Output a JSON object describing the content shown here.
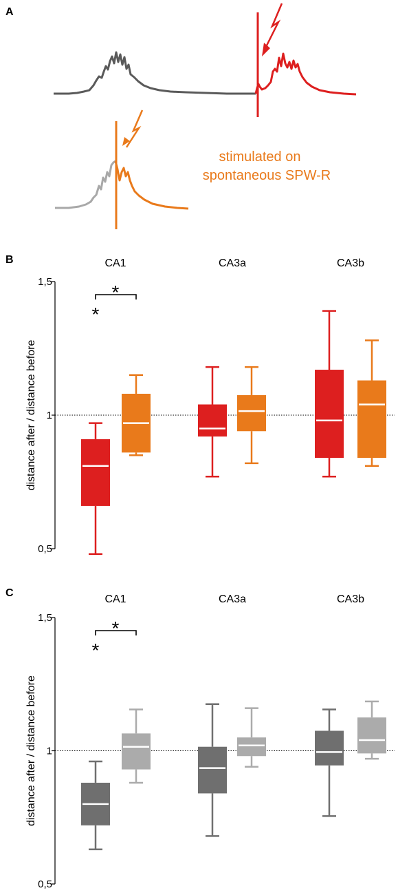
{
  "panel_labels": {
    "a": "A",
    "b": "B",
    "c": "C"
  },
  "panel_a": {
    "annotation": [
      "stimulated on",
      "spontaneous SPW-R"
    ],
    "colors": {
      "spontaneous": "#5a5a5a",
      "stimulated": "#dd1f1f",
      "on_spw_pre": "#a8a8a8",
      "on_spw_post": "#e97a1b"
    }
  },
  "chart_data": [
    {
      "type": "box",
      "panel": "B",
      "ylabel": "distance after / distance before",
      "ylim": [
        0.5,
        1.5
      ],
      "yticks": [
        0.5,
        1,
        1.5
      ],
      "ytick_labels": [
        "0,5",
        "1",
        "1,5"
      ],
      "reference_line": 1.0,
      "groups": [
        "CA1",
        "CA3a",
        "CA3b"
      ],
      "box_colors": [
        "#dd1f1f",
        "#e97a1b"
      ],
      "median_color": "#ffffff",
      "boxes": [
        {
          "group": "CA1",
          "color": "#dd1f1f",
          "whisker_low": 0.48,
          "q1": 0.66,
          "median": 0.81,
          "q3": 0.91,
          "whisker_high": 0.97
        },
        {
          "group": "CA1",
          "color": "#e97a1b",
          "whisker_low": 0.85,
          "q1": 0.86,
          "median": 0.97,
          "q3": 1.08,
          "whisker_high": 1.15
        },
        {
          "group": "CA3a",
          "color": "#dd1f1f",
          "whisker_low": 0.77,
          "q1": 0.92,
          "median": 0.95,
          "q3": 1.04,
          "whisker_high": 1.18
        },
        {
          "group": "CA3a",
          "color": "#e97a1b",
          "whisker_low": 0.82,
          "q1": 0.94,
          "median": 1.015,
          "q3": 1.075,
          "whisker_high": 1.18
        },
        {
          "group": "CA3b",
          "color": "#dd1f1f",
          "whisker_low": 0.77,
          "q1": 0.84,
          "median": 0.98,
          "q3": 1.17,
          "whisker_high": 1.39
        },
        {
          "group": "CA3b",
          "color": "#e97a1b",
          "whisker_low": 0.81,
          "q1": 0.84,
          "median": 1.04,
          "q3": 1.13,
          "whisker_high": 1.28
        }
      ],
      "significance": {
        "bracket_label": "*",
        "outside_star": "*"
      }
    },
    {
      "type": "box",
      "panel": "C",
      "ylabel": "distance after / distance before",
      "ylim": [
        0.5,
        1.5
      ],
      "yticks": [
        0.5,
        1,
        1.5
      ],
      "ytick_labels": [
        "0,5",
        "1",
        "1,5"
      ],
      "reference_line": 1.0,
      "groups": [
        "CA1",
        "CA3a",
        "CA3b"
      ],
      "box_colors": [
        "#6f6f6f",
        "#ababab"
      ],
      "median_color": "#ffffff",
      "boxes": [
        {
          "group": "CA1",
          "color": "#6f6f6f",
          "whisker_low": 0.63,
          "q1": 0.72,
          "median": 0.8,
          "q3": 0.88,
          "whisker_high": 0.96
        },
        {
          "group": "CA1",
          "color": "#ababab",
          "whisker_low": 0.88,
          "q1": 0.93,
          "median": 1.015,
          "q3": 1.065,
          "whisker_high": 1.155
        },
        {
          "group": "CA3a",
          "color": "#6f6f6f",
          "whisker_low": 0.68,
          "q1": 0.84,
          "median": 0.935,
          "q3": 1.015,
          "whisker_high": 1.175
        },
        {
          "group": "CA3a",
          "color": "#ababab",
          "whisker_low": 0.94,
          "q1": 0.98,
          "median": 1.02,
          "q3": 1.05,
          "whisker_high": 1.16
        },
        {
          "group": "CA3b",
          "color": "#6f6f6f",
          "whisker_low": 0.755,
          "q1": 0.945,
          "median": 0.995,
          "q3": 1.075,
          "whisker_high": 1.155
        },
        {
          "group": "CA3b",
          "color": "#ababab",
          "whisker_low": 0.97,
          "q1": 0.99,
          "median": 1.04,
          "q3": 1.125,
          "whisker_high": 1.185
        }
      ],
      "significance": {
        "bracket_label": "*",
        "outside_star": "*"
      }
    }
  ]
}
